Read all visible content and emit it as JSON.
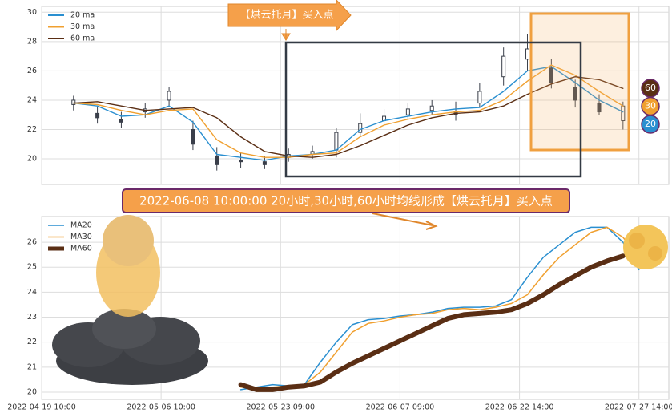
{
  "chart_data": [
    {
      "type": "candlestick",
      "x": [
        8,
        14,
        20,
        26,
        32,
        38,
        44,
        50,
        56,
        62,
        68,
        74,
        80,
        86,
        92,
        98,
        104,
        110,
        116,
        122,
        128,
        134,
        140,
        146
      ],
      "xlim": [
        0,
        157.5
      ],
      "ylim": [
        18.25,
        30.4
      ],
      "yticks": [
        20,
        22,
        24,
        26,
        28,
        30
      ],
      "grid": true,
      "legend": "upper left",
      "candles": {
        "color": "#3a3f4a",
        "open": [
          23.7,
          23.1,
          22.7,
          23.2,
          24.0,
          22.0,
          20.2,
          19.9,
          19.8,
          20.1,
          20.3,
          20.6,
          21.8,
          22.6,
          23.0,
          23.3,
          23.2,
          23.8,
          25.6,
          26.8,
          26.2,
          24.9,
          23.8,
          22.6
        ],
        "high": [
          24.3,
          23.6,
          23.2,
          23.8,
          24.9,
          22.6,
          20.8,
          20.4,
          20.2,
          20.7,
          20.9,
          22.1,
          23.1,
          23.4,
          23.8,
          24.0,
          23.9,
          25.2,
          27.6,
          28.5,
          26.8,
          25.4,
          24.4,
          23.9
        ],
        "low": [
          23.3,
          22.4,
          22.1,
          22.8,
          23.6,
          20.6,
          19.2,
          19.4,
          19.3,
          19.8,
          20.0,
          20.1,
          21.5,
          22.3,
          22.7,
          23.0,
          22.6,
          23.5,
          25.0,
          26.0,
          24.8,
          23.5,
          23.0,
          22.0
        ],
        "close": [
          24.0,
          22.8,
          22.5,
          23.4,
          24.6,
          21.0,
          19.6,
          19.8,
          19.6,
          20.3,
          20.5,
          21.8,
          22.4,
          22.9,
          23.4,
          23.6,
          23.0,
          24.6,
          27.0,
          27.5,
          25.2,
          24.0,
          23.2,
          23.6
        ]
      },
      "series": [
        {
          "name": "20 ma",
          "color": "#2a8fd0",
          "values": [
            23.8,
            23.6,
            22.9,
            23.0,
            23.6,
            22.5,
            20.3,
            20.1,
            19.9,
            20.2,
            20.3,
            20.6,
            22.0,
            22.6,
            22.9,
            23.2,
            23.4,
            23.5,
            24.6,
            26.0,
            26.3,
            25.2,
            24.0,
            23.2
          ]
        },
        {
          "name": "30 ma",
          "color": "#f0a030",
          "values": [
            23.8,
            23.7,
            23.3,
            23.0,
            23.3,
            23.4,
            21.3,
            20.4,
            20.1,
            20.1,
            20.3,
            20.4,
            21.5,
            22.3,
            22.7,
            23.0,
            23.2,
            23.3,
            24.0,
            25.3,
            26.4,
            25.7,
            24.6,
            23.6
          ]
        },
        {
          "name": "60 ma",
          "color": "#5a2e14",
          "values": [
            23.8,
            23.9,
            23.6,
            23.3,
            23.4,
            23.5,
            22.8,
            21.5,
            20.5,
            20.2,
            20.1,
            20.3,
            20.9,
            21.6,
            22.3,
            22.8,
            23.1,
            23.2,
            23.6,
            24.4,
            25.1,
            25.6,
            25.4,
            24.8
          ]
        }
      ],
      "end_labels": [
        60,
        30,
        20
      ],
      "annotations": [
        "【烘云托月】买入点",
        "2022-06-08 10:00:00 20小时,30小时,60小时均线形成【烘云托月】买入点"
      ]
    },
    {
      "type": "line",
      "x": [
        50,
        54,
        58,
        62,
        66,
        70,
        74,
        78,
        82,
        86,
        90,
        94,
        98,
        102,
        106,
        110,
        114,
        118,
        122,
        126,
        130,
        134,
        138,
        142,
        146,
        150
      ],
      "xlim": [
        0,
        157.5
      ],
      "xticks": [
        {
          "value": 0,
          "label": "2022-04-19 10:00"
        },
        {
          "value": 30,
          "label": "2022-05-06 10:00"
        },
        {
          "value": 60,
          "label": "2022-05-23 09:00"
        },
        {
          "value": 90,
          "label": "2022-06-07 09:00"
        },
        {
          "value": 120,
          "label": "2022-06-22 14:00"
        },
        {
          "value": 150,
          "label": "2022-07-27 14:00"
        }
      ],
      "ylim": [
        19.71,
        27.03
      ],
      "yticks": [
        20,
        21,
        22,
        23,
        24,
        25,
        26
      ],
      "grid": true,
      "legend": "upper left",
      "series": [
        {
          "name": "MA20",
          "color": "#2a8fd0",
          "width": 1.5,
          "values": [
            20.1,
            20.2,
            20.3,
            20.25,
            20.3,
            21.2,
            22.0,
            22.7,
            22.9,
            22.95,
            23.05,
            23.1,
            23.2,
            23.35,
            23.4,
            23.4,
            23.45,
            23.7,
            24.6,
            25.4,
            25.9,
            26.4,
            26.6,
            26.6,
            26.0,
            24.9
          ]
        },
        {
          "name": "MA30",
          "color": "#f0a030",
          "width": 1.5,
          "values": [
            20.2,
            20.15,
            20.2,
            20.25,
            20.3,
            20.8,
            21.6,
            22.4,
            22.75,
            22.85,
            23.0,
            23.1,
            23.15,
            23.3,
            23.35,
            23.3,
            23.4,
            23.55,
            23.9,
            24.7,
            25.4,
            25.9,
            26.4,
            26.6,
            26.2,
            25.4
          ]
        },
        {
          "name": "MA60",
          "color": "#5a2e14",
          "width": 6,
          "values": [
            20.3,
            20.1,
            20.1,
            20.2,
            20.25,
            20.4,
            20.8,
            21.15,
            21.45,
            21.75,
            22.05,
            22.35,
            22.65,
            22.95,
            23.1,
            23.15,
            23.2,
            23.3,
            23.55,
            23.9,
            24.3,
            24.65,
            25.0,
            25.25,
            25.45,
            null
          ]
        }
      ]
    }
  ]
}
